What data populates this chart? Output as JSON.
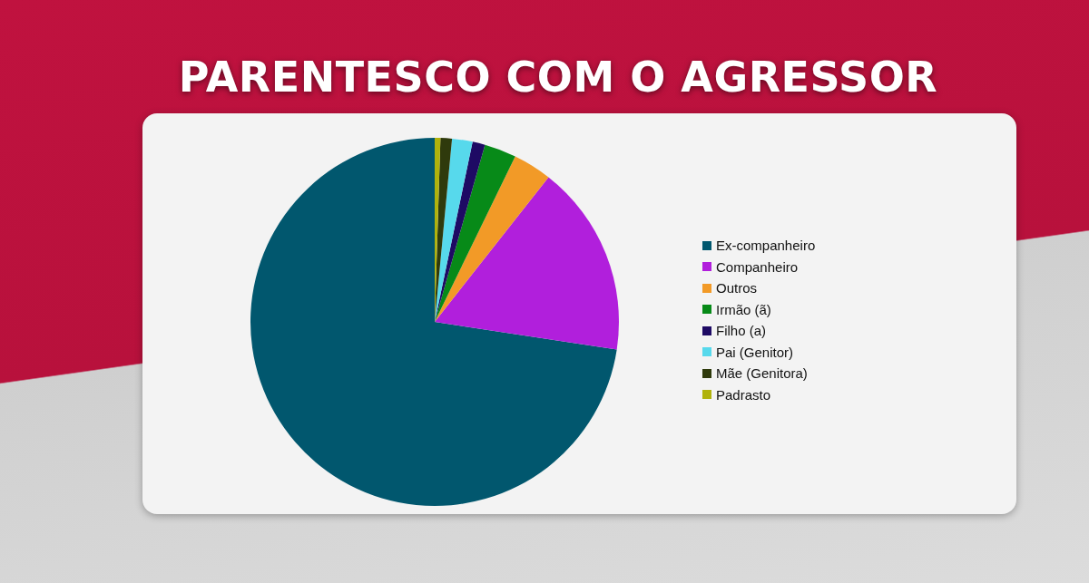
{
  "chart_data": {
    "type": "pie",
    "title": "PARENTESCO COM O AGRESSOR",
    "categories": [
      "Ex-companheiro",
      "Companheiro",
      "Outros",
      "Irmão (ã)",
      "Filho (a)",
      "Pai (Genitor)",
      "Mãe (Genitora)",
      "Padrasto"
    ],
    "values": [
      72.6,
      16.8,
      3.4,
      2.8,
      1.1,
      1.8,
      1.0,
      0.5
    ],
    "colors": [
      "#01576e",
      "#b11fdc",
      "#f29a27",
      "#078a18",
      "#1e0a64",
      "#57d9ec",
      "#2f3a0c",
      "#b0b20c"
    ],
    "legend": "right"
  }
}
